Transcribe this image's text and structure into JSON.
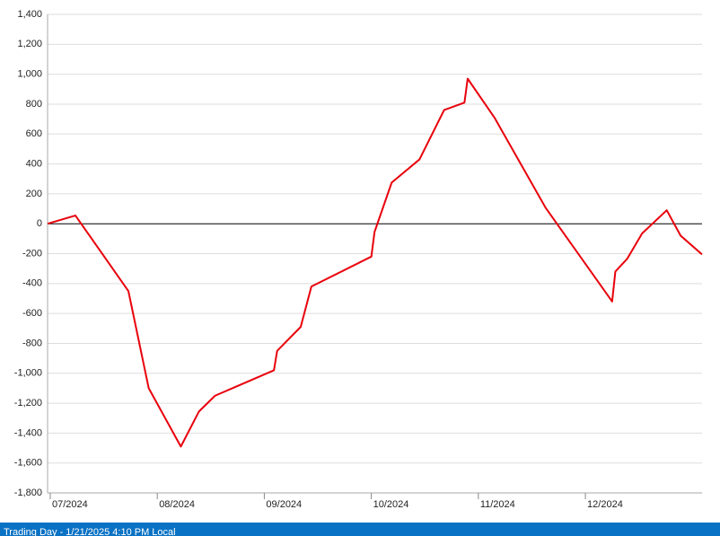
{
  "chart_data": {
    "type": "line",
    "x": [
      6.975,
      7.235,
      7.73,
      7.92,
      8.22,
      8.39,
      8.54,
      9.09,
      9.12,
      9.34,
      9.44,
      10.0,
      10.03,
      10.19,
      10.45,
      10.68,
      10.87,
      10.9,
      11.15,
      11.63,
      12.25,
      12.28,
      12.39,
      12.53,
      12.76,
      12.89,
      13.09
    ],
    "series": [
      {
        "color": "#e8000b",
        "values": [
          0,
          55,
          -450,
          -1100,
          -1490,
          -1255,
          -1150,
          -980,
          -850,
          -690,
          -420,
          -220,
          -55,
          275,
          430,
          760,
          810,
          970,
          710,
          105,
          -520,
          -320,
          -235,
          -65,
          90,
          -80,
          -205
        ]
      }
    ],
    "xlim": [
      6.975,
      13.09
    ],
    "xticks": [
      {
        "value": 7,
        "label": "07/2024"
      },
      {
        "value": 8,
        "label": "08/2024"
      },
      {
        "value": 9,
        "label": "09/2024"
      },
      {
        "value": 10,
        "label": "10/2024"
      },
      {
        "value": 11,
        "label": "11/2024"
      },
      {
        "value": 12,
        "label": "12/2024"
      }
    ],
    "ylim": [
      -1800,
      1400
    ],
    "yticks": [
      {
        "value": -1800,
        "label": "-1,800"
      },
      {
        "value": -1600,
        "label": "-1,600"
      },
      {
        "value": -1400,
        "label": "-1,400"
      },
      {
        "value": -1200,
        "label": "-1,200"
      },
      {
        "value": -1000,
        "label": "-1,000"
      },
      -800,
      -600,
      -400,
      -200,
      0,
      200,
      400,
      600,
      800,
      {
        "value": 1000,
        "label": "1,000"
      },
      {
        "value": 1200,
        "label": "1,200"
      },
      {
        "value": 1400,
        "label": "1,400"
      }
    ],
    "grid": true
  },
  "footer": {
    "text": "Trading Day - 1/21/2025 4:10 PM Local"
  }
}
